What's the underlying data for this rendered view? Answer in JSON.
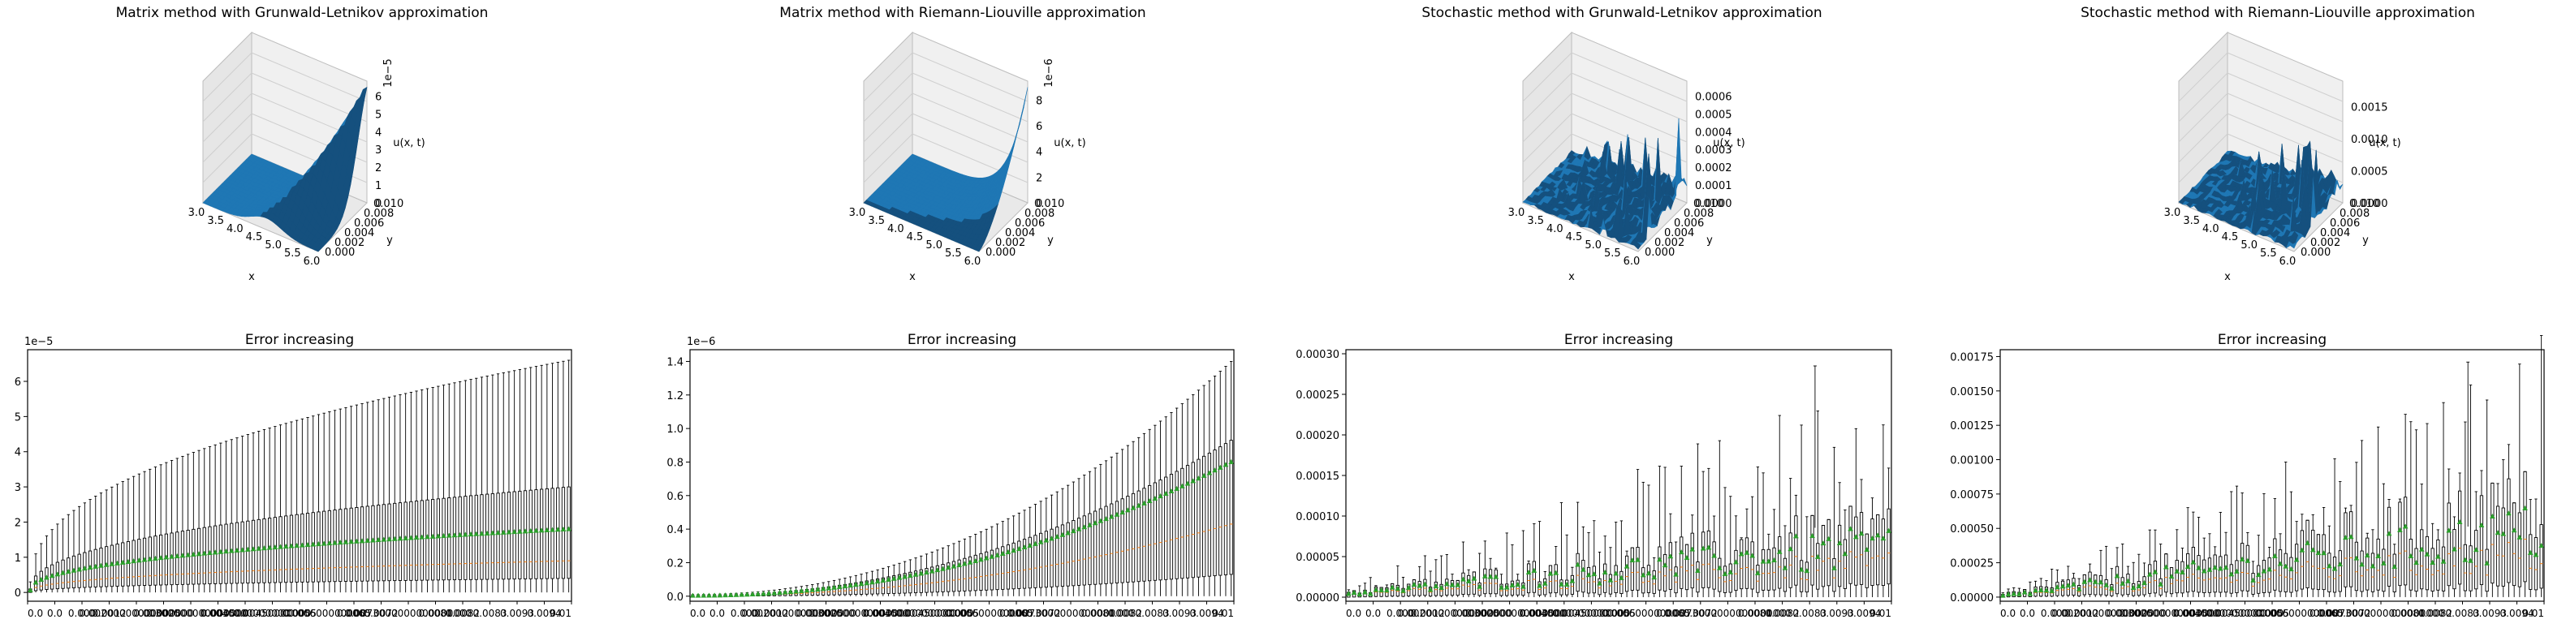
{
  "colors": {
    "surface": "#1f77b4",
    "surface_dark": "#15507e",
    "pane": "#f0f0f0",
    "pane_side": "#e6e6e6",
    "grid": "#cfcfcf",
    "box": "#000000",
    "median": "#ff7f0e",
    "mean": "#2ca02c",
    "axis": "#000000"
  },
  "surface_charts": [
    {
      "title": "Matrix method with Grunwald-Letnikov approximation",
      "xlabel": "x",
      "ylabel": "y",
      "zlabel": "u(x, t)",
      "x_ticks": [
        "3.0",
        "3.5",
        "4.0",
        "4.5",
        "5.0",
        "5.5",
        "6.0"
      ],
      "y_ticks": [
        "0.000",
        "0.002",
        "0.004",
        "0.006",
        "0.008",
        "0.010"
      ],
      "z_ticks": [
        "0",
        "1",
        "2",
        "3",
        "4",
        "5",
        "6"
      ],
      "z_offset": "1e−5",
      "shape": "hump",
      "zlim": [
        0,
        6.5
      ]
    },
    {
      "title": "Matrix method with Riemann-Liouville approximation",
      "xlabel": "x",
      "ylabel": "y",
      "zlabel": "u(x, t)",
      "x_ticks": [
        "3.0",
        "3.5",
        "4.0",
        "4.5",
        "5.0",
        "5.5",
        "6.0"
      ],
      "y_ticks": [
        "0.000",
        "0.002",
        "0.004",
        "0.006",
        "0.008",
        "0.010"
      ],
      "z_ticks": [
        "0",
        "2",
        "4",
        "6",
        "8"
      ],
      "z_offset": "1e−6",
      "shape": "corner",
      "zlim": [
        0,
        9
      ]
    },
    {
      "title": "Stochastic method with Grunwald-Letnikov approximation",
      "xlabel": "x",
      "ylabel": "y",
      "zlabel": "u(x, t)",
      "x_ticks": [
        "3.0",
        "3.5",
        "4.0",
        "4.5",
        "5.0",
        "5.5",
        "6.0"
      ],
      "y_ticks": [
        "0.000",
        "0.002",
        "0.004",
        "0.006",
        "0.008",
        "0.010"
      ],
      "z_ticks": [
        "0.0000",
        "0.0001",
        "0.0002",
        "0.0003",
        "0.0004",
        "0.0005",
        "0.0006"
      ],
      "z_offset": "",
      "shape": "noisy",
      "zlim": [
        0,
        0.00065
      ]
    },
    {
      "title": "Stochastic method with Riemann-Liouville approximation",
      "xlabel": "x",
      "ylabel": "y",
      "zlabel": "u(x, t)",
      "x_ticks": [
        "3.0",
        "3.5",
        "4.0",
        "4.5",
        "5.0",
        "5.5",
        "6.0"
      ],
      "y_ticks": [
        "0.000",
        "0.002",
        "0.004",
        "0.006",
        "0.008",
        "0.010"
      ],
      "z_ticks": [
        "0.0000",
        "0.0005",
        "0.0010",
        "0.0015"
      ],
      "z_offset": "",
      "shape": "noisy",
      "zlim": [
        0,
        0.0018
      ]
    }
  ],
  "chart_data": [
    {
      "type": "box",
      "title": "Error increasing",
      "y_ticks": [
        "0",
        "1",
        "2",
        "3",
        "4",
        "5",
        "6"
      ],
      "y_offset": "1e−5",
      "ylim": [
        -0.25,
        6.9
      ],
      "n_boxes": 100,
      "profile": "sqrt",
      "whisker_high": [
        0.3,
        6.6
      ],
      "q3": [
        0.1,
        3.0
      ],
      "mean": [
        0.06,
        1.8
      ],
      "median": [
        0.03,
        0.9
      ],
      "q1": [
        0.0,
        0.4
      ],
      "whisker_low": [
        0.0,
        0.0
      ],
      "x_tick_labels": [
        "0.0",
        "0.0",
        "0.000",
        "0.0012",
        "0.00200000000000000",
        "0.0025",
        "0.00300000000000000",
        "0.0035",
        "0.0040000000000",
        "0.00450000000",
        "0.0055",
        "0.00600000000",
        "0.0065",
        "0.0072",
        "0.0073000000000000000",
        "0.0081",
        "0.0082",
        "0.0083",
        "0.0093",
        "0.0094",
        "0.01"
      ]
    },
    {
      "type": "box",
      "title": "Error increasing",
      "y_ticks": [
        "0.0",
        "0.2",
        "0.4",
        "0.6",
        "0.8",
        "1.0",
        "1.2",
        "1.4"
      ],
      "y_offset": "1e−6",
      "ylim": [
        -0.03,
        1.47
      ],
      "n_boxes": 100,
      "profile": "quad",
      "whisker_high": [
        0.01,
        1.4
      ],
      "q3": [
        0.005,
        0.93
      ],
      "mean": [
        0.003,
        0.8
      ],
      "median": [
        0.002,
        0.43
      ],
      "q1": [
        0.0,
        0.13
      ],
      "whisker_low": [
        0.0,
        0.0
      ],
      "x_tick_labels": [
        "0.0",
        "0.0",
        "0.000",
        "0.0012",
        "0.00200000000000000",
        "0.0025",
        "0.00300000000000000",
        "0.0035",
        "0.0040000000000",
        "0.00450000000",
        "0.0055",
        "0.00600000000",
        "0.0065",
        "0.0072",
        "0.0073000000000000000",
        "0.0081",
        "0.0082",
        "0.0083",
        "0.0093",
        "0.0094",
        "0.01"
      ]
    },
    {
      "type": "box",
      "title": "Error increasing",
      "y_ticks": [
        "0.00000",
        "0.00005",
        "0.00010",
        "0.00015",
        "0.00020",
        "0.00025",
        "0.00030"
      ],
      "y_offset": "",
      "ylim": [
        -5e-06,
        0.000305
      ],
      "n_boxes": 100,
      "profile": "linear-noisy",
      "whisker_high": [
        1e-05,
        0.00019
      ],
      "q3": [
        6e-06,
        8e-05
      ],
      "mean": [
        4e-06,
        6e-05
      ],
      "median": [
        3e-06,
        4e-05
      ],
      "q1": [
        0.0,
        1.2e-05
      ],
      "whisker_low": [
        0.0,
        0.0
      ],
      "outlier_high": 0.000285,
      "x_tick_labels": [
        "0.0",
        "0.0",
        "0.000",
        "0.0012",
        "0.00200000000000000",
        "0.0025",
        "0.00300000000000000",
        "0.0035",
        "0.0040000000000",
        "0.00450000000",
        "0.0055",
        "0.00600000000",
        "0.0065",
        "0.0072",
        "0.0073000000000000000",
        "0.0081",
        "0.0082",
        "0.0083",
        "0.0093",
        "0.0094",
        "0.01"
      ]
    },
    {
      "type": "box",
      "title": "Error increasing",
      "y_ticks": [
        "0.00000",
        "0.00025",
        "0.00050",
        "0.00075",
        "0.00100",
        "0.00125",
        "0.00150",
        "0.00175"
      ],
      "y_offset": "",
      "ylim": [
        -3e-05,
        0.0018
      ],
      "n_boxes": 100,
      "profile": "linear-noisy",
      "whisker_high": [
        3e-05,
        0.0013
      ],
      "q3": [
        2e-05,
        0.00065
      ],
      "mean": [
        1e-05,
        0.00046
      ],
      "median": [
        8e-06,
        0.0003
      ],
      "q1": [
        0.0,
        8e-05
      ],
      "whisker_low": [
        0.0,
        0.0
      ],
      "outlier_high": 0.00171,
      "x_tick_labels": [
        "0.0",
        "0.0",
        "0.000",
        "0.0012",
        "0.00200000000000000",
        "0.0025",
        "0.00300000000000000",
        "0.0035",
        "0.0040000000000",
        "0.00450000000",
        "0.0055",
        "0.00600000000",
        "0.0065",
        "0.0072",
        "0.0073000000000000000",
        "0.0081",
        "0.0082",
        "0.0083",
        "0.0093",
        "0.0094",
        "0.01"
      ]
    }
  ]
}
